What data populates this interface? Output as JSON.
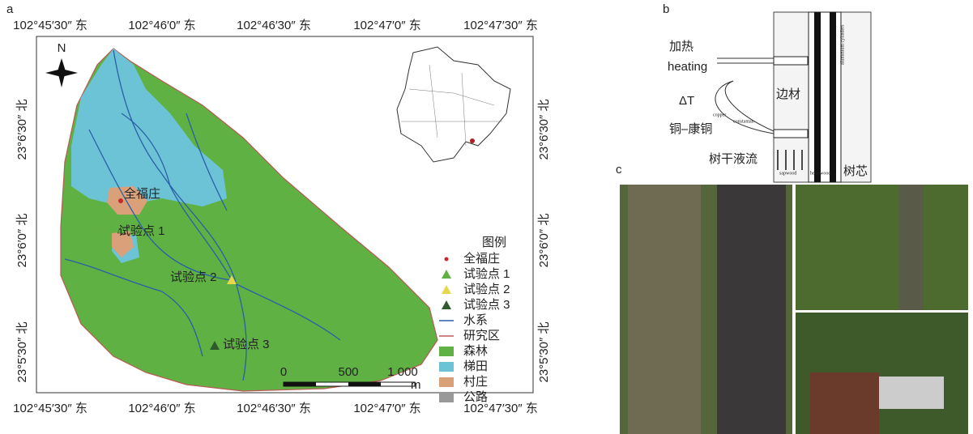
{
  "panels": {
    "a": {
      "label": "a",
      "top_ticks": [
        "102°45′30″ 东",
        "102°46′0″ 东",
        "102°46′30″ 东",
        "102°47′0″ 东",
        "102°47′30″ 东"
      ],
      "side_ticks": [
        "23°6′30″ 北",
        "23°6′0″ 北",
        "23°5′30″ 北"
      ],
      "north": "N",
      "places": [
        "全福庄",
        "试验点 1",
        "试验点 2",
        "试验点 3"
      ],
      "scale": {
        "ticks": [
          "0",
          "500",
          "1 000"
        ],
        "unit": "m"
      },
      "legend": {
        "title": "图例",
        "items": [
          "全福庄",
          "试验点 1",
          "试验点 2",
          "试验点 3",
          "水系",
          "研究区",
          "森林",
          "梯田",
          "村庄",
          "公路"
        ]
      }
    },
    "b": {
      "label": "b",
      "texts": [
        "加热",
        "heating",
        "ΔT",
        "铜–康铜",
        "边材",
        "树干液流",
        "树芯"
      ],
      "small": [
        "copper",
        "constantan",
        "aluminium cylinders",
        "sapwood",
        "heartwood"
      ]
    },
    "c": {
      "label": "c"
    }
  }
}
